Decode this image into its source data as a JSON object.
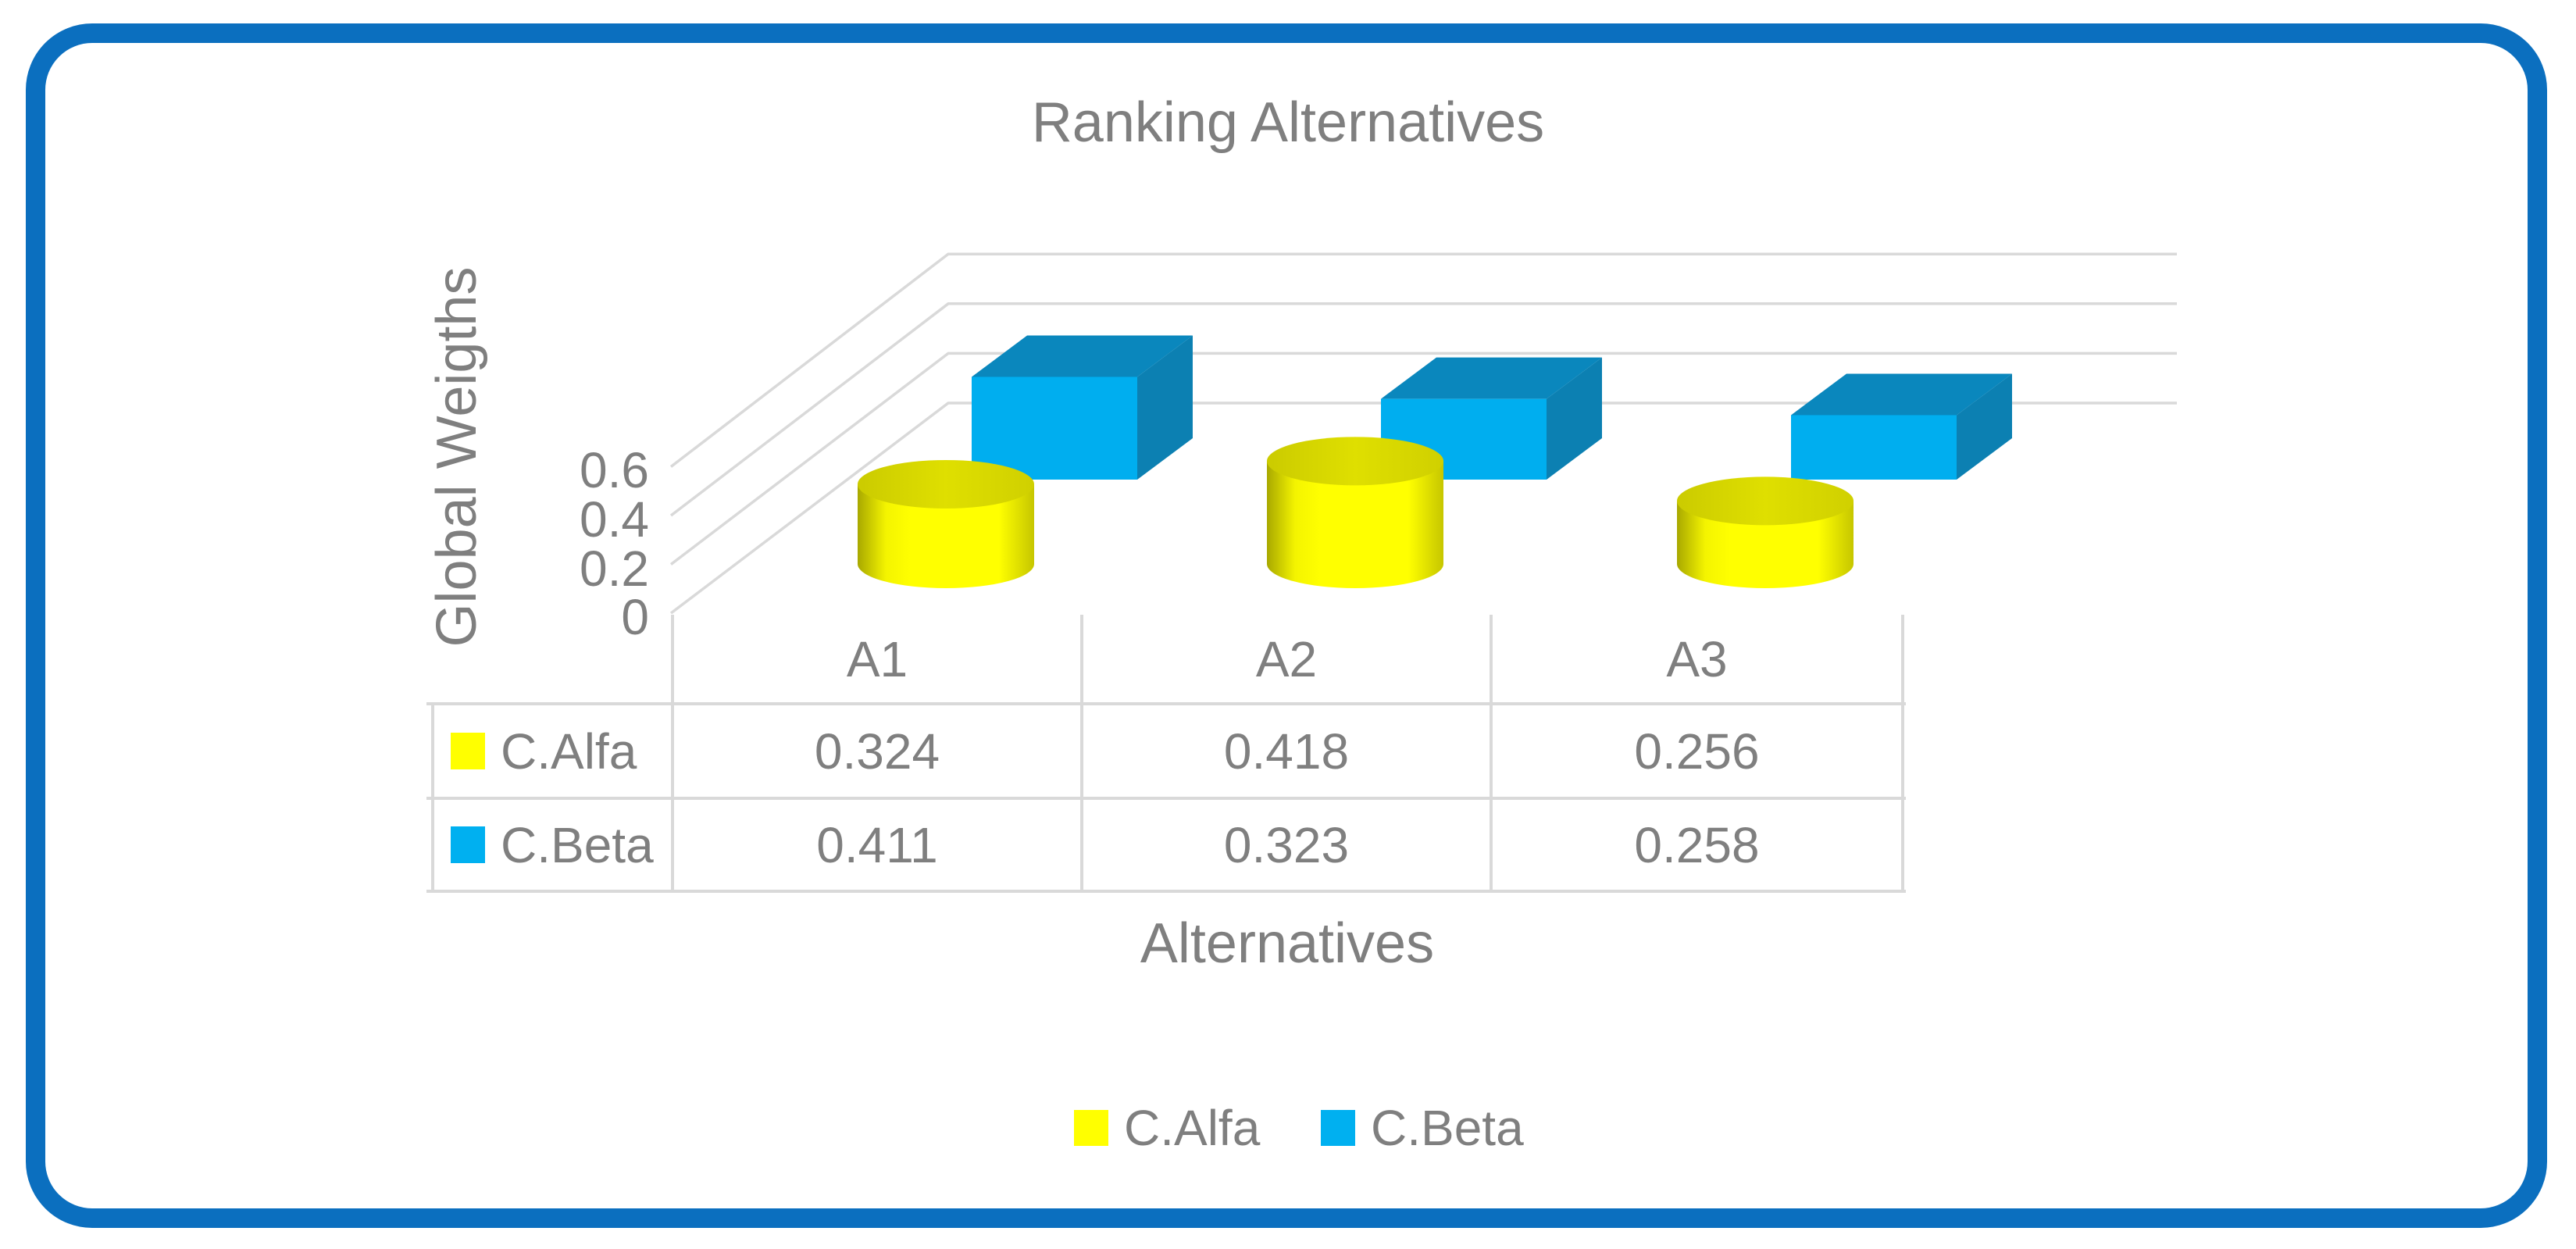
{
  "title": "Ranking Alternatives",
  "frame": {
    "border_color": "#0b6fbf"
  },
  "axes": {
    "y_title": "Global Weigths",
    "x_title": "Alternatives",
    "y_tick_labels": [
      "0",
      "0.2",
      "0.4",
      "0.6"
    ]
  },
  "chart_data": {
    "type": "bar",
    "subtype": "3d-bar",
    "title": "Ranking Alternatives",
    "xlabel": "Alternatives",
    "ylabel": "Global Weigths",
    "categories": [
      "A1",
      "A2",
      "A3"
    ],
    "series": [
      {
        "name": "C.Alfa",
        "shape": "cylinder",
        "color": "#ffff00",
        "values": [
          0.324,
          0.418,
          0.256
        ]
      },
      {
        "name": "C.Beta",
        "shape": "box",
        "color": "#00b0f0",
        "values": [
          0.411,
          0.323,
          0.258
        ]
      }
    ],
    "ylim": [
      0,
      0.6
    ],
    "y_ticks": [
      0,
      0.2,
      0.4,
      0.6
    ],
    "grid": true,
    "legend_position": "bottom",
    "data_table_shown": true
  },
  "table": {
    "column_headers": [
      "A1",
      "A2",
      "A3"
    ],
    "rows": [
      {
        "label": "C.Alfa",
        "key_color": "#ffff00",
        "values": [
          "0.324",
          "0.418",
          "0.256"
        ]
      },
      {
        "label": "C.Beta",
        "key_color": "#00b0f0",
        "values": [
          "0.411",
          "0.323",
          "0.258"
        ]
      }
    ]
  },
  "legend": {
    "items": [
      {
        "label": "C.Alfa",
        "color": "#ffff00"
      },
      {
        "label": "C.Beta",
        "color": "#00b0f0"
      }
    ]
  },
  "colors": {
    "text_gray": "#7f7f7f",
    "grid_gray": "#d9d9d9",
    "box_front": "#00aeef",
    "box_top": "#0a87bd",
    "box_side": "#0c80b2",
    "cylinder_top": "#d8d800"
  }
}
